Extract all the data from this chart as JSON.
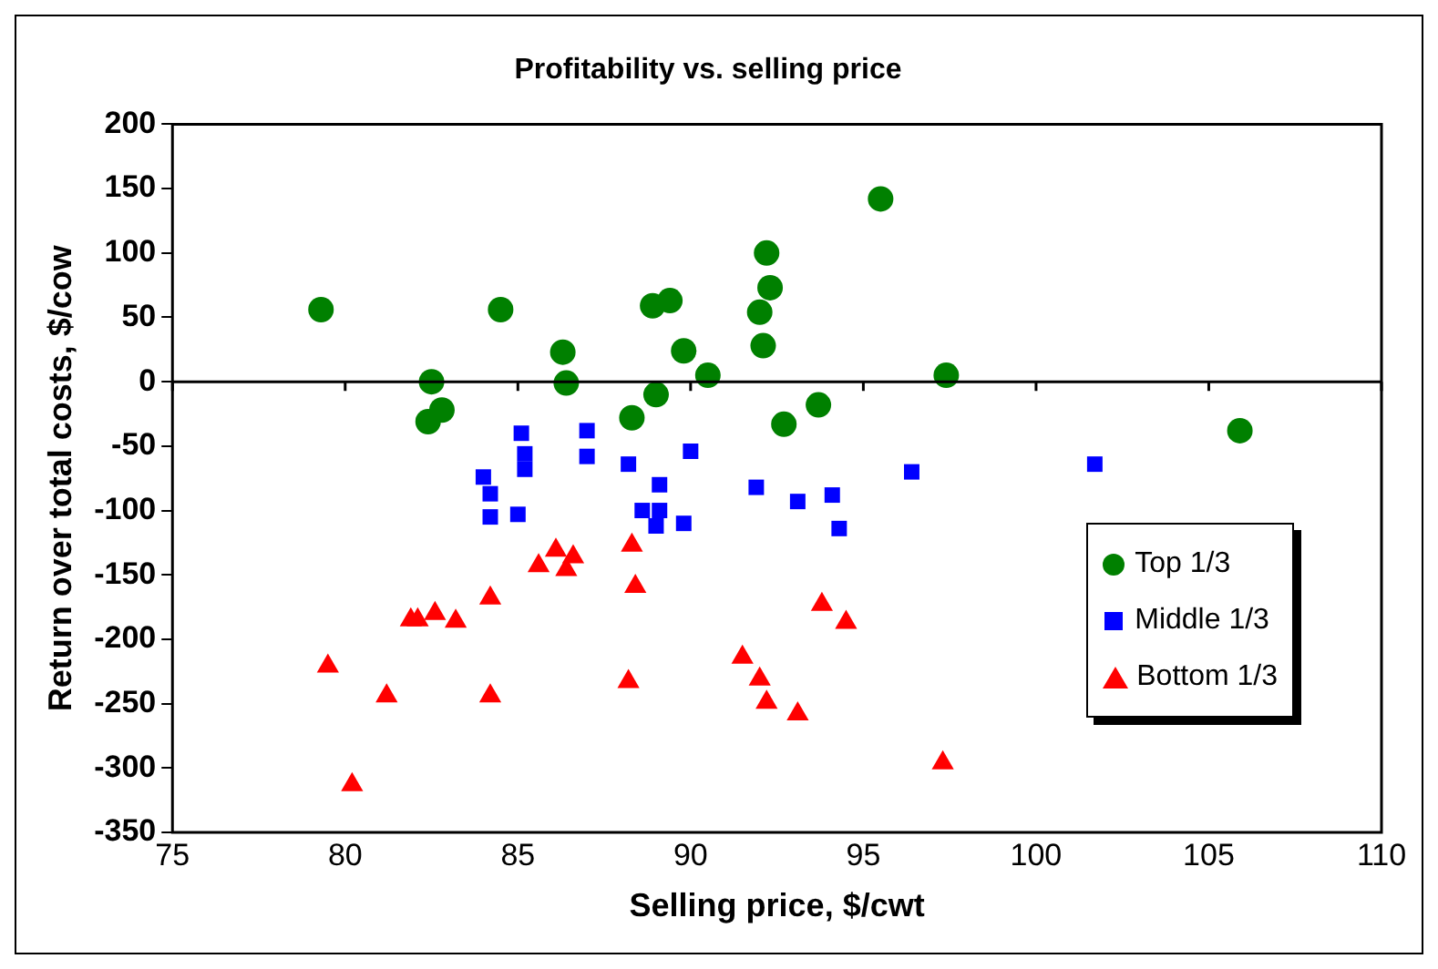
{
  "chart_data": {
    "type": "scatter",
    "title": "Profitability vs. selling price",
    "xlabel": "Selling price, $/cwt",
    "ylabel": "Return over total costs, $/cow",
    "xlim": [
      75,
      110
    ],
    "xticks": [
      75,
      80,
      85,
      90,
      95,
      100,
      105,
      110
    ],
    "ylim": [
      -350,
      200
    ],
    "yticks": [
      -350,
      -300,
      -250,
      -200,
      -150,
      -100,
      -50,
      0,
      50,
      100,
      150,
      200
    ],
    "grid": false,
    "legend": "right",
    "ref_lines": [
      {
        "axis": "y",
        "value": 0
      }
    ],
    "series": [
      {
        "name": "Top 1/3",
        "color": "#008000",
        "marker": "circle",
        "x": [
          79.3,
          82.5,
          82.8,
          82.4,
          84.5,
          86.3,
          86.4,
          88.3,
          88.9,
          89.4,
          89.0,
          89.8,
          90.5,
          92.0,
          92.2,
          92.3,
          92.1,
          92.7,
          93.7,
          95.5,
          97.4,
          105.9
        ],
        "values": [
          56,
          0,
          -22,
          -31,
          56,
          23,
          -1,
          -28,
          59,
          63,
          -10,
          24,
          5,
          54,
          100,
          73,
          28,
          -33,
          -18,
          142,
          5,
          -38
        ]
      },
      {
        "name": "Middle 1/3",
        "color": "#0000ff",
        "marker": "square",
        "x": [
          84.0,
          84.2,
          84.2,
          85.1,
          85.2,
          85.2,
          85.0,
          87.0,
          87.0,
          88.2,
          88.6,
          89.1,
          89.0,
          89.1,
          89.8,
          90.0,
          91.9,
          93.1,
          94.1,
          94.3,
          96.4,
          101.7
        ],
        "values": [
          -74,
          -87,
          -105,
          -40,
          -56,
          -68,
          -103,
          -38,
          -58,
          -64,
          -100,
          -100,
          -112,
          -80,
          -110,
          -54,
          -82,
          -93,
          -88,
          -114,
          -70,
          -64
        ]
      },
      {
        "name": "Bottom 1/3",
        "color": "#ff0000",
        "marker": "triangle",
        "x": [
          79.5,
          80.2,
          81.2,
          81.9,
          82.1,
          82.6,
          83.2,
          84.2,
          84.2,
          85.6,
          86.1,
          86.6,
          86.4,
          88.3,
          88.4,
          88.2,
          91.5,
          92.0,
          92.2,
          93.1,
          93.8,
          94.5,
          97.3
        ],
        "values": [
          -221,
          -313,
          -244,
          -185,
          -185,
          -180,
          -186,
          -168,
          -244,
          -143,
          -131,
          -136,
          -146,
          -127,
          -159,
          -233,
          -214,
          -231,
          -249,
          -258,
          -173,
          -187,
          -296
        ]
      }
    ]
  }
}
